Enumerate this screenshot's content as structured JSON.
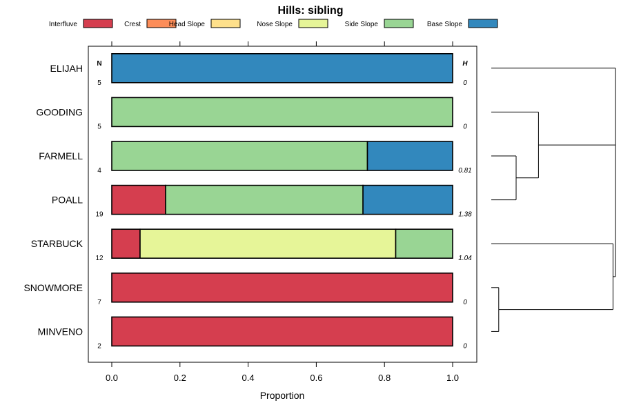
{
  "chart_data": {
    "type": "bar",
    "stacked": true,
    "orientation": "horizontal",
    "title": "Hills: sibling",
    "xlabel": "Proportion",
    "xlim": [
      0,
      1
    ],
    "xticks": [
      "0.0",
      "0.2",
      "0.4",
      "0.6",
      "0.8",
      "1.0"
    ],
    "legend": [
      {
        "name": "Interfluve",
        "color": "#D53E4F"
      },
      {
        "name": "Crest",
        "color": "#FC8D59"
      },
      {
        "name": "Head Slope",
        "color": "#FEE08B"
      },
      {
        "name": "Nose Slope",
        "color": "#E6F598"
      },
      {
        "name": "Side Slope",
        "color": "#99D594"
      },
      {
        "name": "Base Slope",
        "color": "#3288BD"
      }
    ],
    "n_header": "N",
    "h_header": "H",
    "rows": [
      {
        "label": "ELIJAH",
        "n": "5",
        "h": "0",
        "segments": {
          "Interfluve": 0,
          "Crest": 0,
          "Head Slope": 0,
          "Nose Slope": 0,
          "Side Slope": 0,
          "Base Slope": 1.0
        }
      },
      {
        "label": "GOODING",
        "n": "5",
        "h": "0",
        "segments": {
          "Interfluve": 0,
          "Crest": 0,
          "Head Slope": 0,
          "Nose Slope": 0,
          "Side Slope": 1.0,
          "Base Slope": 0
        }
      },
      {
        "label": "FARMELL",
        "n": "4",
        "h": "0.81",
        "segments": {
          "Interfluve": 0,
          "Crest": 0,
          "Head Slope": 0,
          "Nose Slope": 0,
          "Side Slope": 0.75,
          "Base Slope": 0.25
        }
      },
      {
        "label": "POALL",
        "n": "19",
        "h": "1.38",
        "segments": {
          "Interfluve": 0.158,
          "Crest": 0,
          "Head Slope": 0,
          "Nose Slope": 0,
          "Side Slope": 0.579,
          "Base Slope": 0.263
        }
      },
      {
        "label": "STARBUCK",
        "n": "12",
        "h": "1.04",
        "segments": {
          "Interfluve": 0.083,
          "Crest": 0,
          "Head Slope": 0,
          "Nose Slope": 0.75,
          "Side Slope": 0.167,
          "Base Slope": 0
        }
      },
      {
        "label": "SNOWMORE",
        "n": "7",
        "h": "0",
        "segments": {
          "Interfluve": 1.0,
          "Crest": 0,
          "Head Slope": 0,
          "Nose Slope": 0,
          "Side Slope": 0,
          "Base Slope": 0
        }
      },
      {
        "label": "MINVENO",
        "n": "2",
        "h": "0",
        "segments": {
          "Interfluve": 1.0,
          "Crest": 0,
          "Head Slope": 0,
          "Nose Slope": 0,
          "Side Slope": 0,
          "Base Slope": 0
        }
      }
    ],
    "dendrogram": {
      "type": "hierarchical clustering",
      "leaf_order": [
        "ELIJAH",
        "GOODING",
        "FARMELL",
        "POALL",
        "STARBUCK",
        "SNOWMORE",
        "MINVENO"
      ],
      "merges": [
        {
          "members": [
            "FARMELL",
            "POALL"
          ],
          "height": 0.2
        },
        {
          "members": [
            "GOODING",
            "FARMELL",
            "POALL"
          ],
          "height": 0.38
        },
        {
          "members": [
            "ELIJAH",
            "GOODING",
            "FARMELL",
            "POALL"
          ],
          "height": 1.0
        },
        {
          "members": [
            "SNOWMORE",
            "MINVENO"
          ],
          "height": 0.06
        },
        {
          "members": [
            "STARBUCK",
            "SNOWMORE",
            "MINVENO"
          ],
          "height": 0.98
        },
        {
          "members": [
            "ELIJAH",
            "GOODING",
            "FARMELL",
            "POALL",
            "STARBUCK",
            "SNOWMORE",
            "MINVENO"
          ],
          "height": 1.0
        }
      ]
    }
  }
}
